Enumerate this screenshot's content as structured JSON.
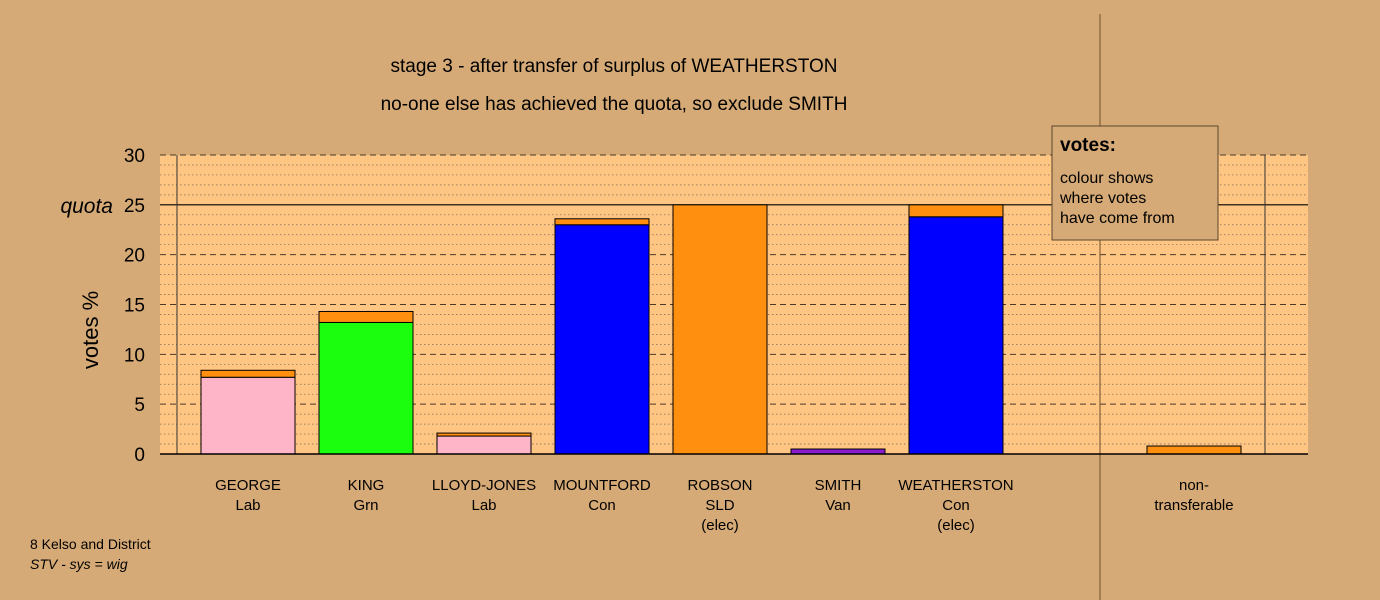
{
  "chart_data": {
    "type": "bar",
    "title": "stage 3 - after transfer of surplus of WEATHERSTON",
    "subtitle": "no-one else has achieved the quota, so exclude SMITH",
    "ylabel": "votes %",
    "ylim": [
      0,
      30
    ],
    "yticks": [
      "0",
      "5",
      "10",
      "15",
      "20",
      "25",
      "30"
    ],
    "quota_label": "quota",
    "quota": 25,
    "categories": [
      {
        "name": "GEORGE",
        "party": "Lab",
        "status": ""
      },
      {
        "name": "KING",
        "party": "Grn",
        "status": ""
      },
      {
        "name": "LLOYD-JONES",
        "party": "Lab",
        "status": ""
      },
      {
        "name": "MOUNTFORD",
        "party": "Con",
        "status": ""
      },
      {
        "name": "ROBSON",
        "party": "SLD",
        "status": "(elec)"
      },
      {
        "name": "SMITH",
        "party": "Van",
        "status": ""
      },
      {
        "name": "WEATHERSTON",
        "party": "Con",
        "status": "(elec)"
      }
    ],
    "nontransferable": {
      "label1": "non-",
      "label2": "transferable",
      "value": 0.8
    },
    "series": [
      {
        "values": [
          7.7,
          13.2,
          1.8,
          23.0,
          25.0,
          0.5,
          23.8
        ],
        "colors": [
          "#ffb5c8",
          "#1bff0f",
          "#ffb5c8",
          "#0000ff",
          "#ff8f0f",
          "#8a1ad1",
          "#0000ff"
        ]
      },
      {
        "values": [
          0.7,
          1.1,
          0.3,
          0.6,
          0,
          0,
          1.2
        ],
        "color": "#ff8f0f"
      }
    ],
    "grid": true,
    "legend": {
      "title": "votes:",
      "lines": [
        "colour shows",
        "where votes",
        "have come from"
      ]
    },
    "colors": {
      "background": "#d6aa76",
      "plot_area": "#ffc583",
      "transfer": "#ff8f0f"
    }
  },
  "footer": {
    "line1": "8 Kelso and District",
    "line2": "STV - sys = wig"
  }
}
